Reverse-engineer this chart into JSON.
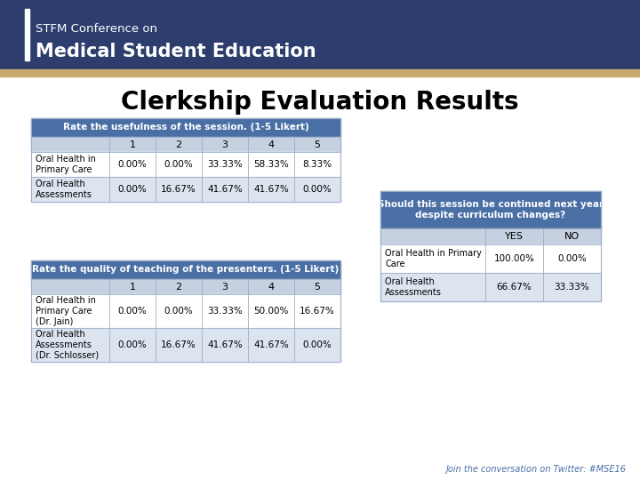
{
  "title": "Clerkship Evaluation Results",
  "header_text_line1": "STFM Conference on",
  "header_text_line2": "Medical Student Education",
  "header_bg": "#2d3e6e",
  "header_accent": "#c8a96e",
  "bg_color": "#ffffff",
  "table_header_bg": "#4a6fa5",
  "table_header_color": "#ffffff",
  "table_subheader_bg": "#c5d0e0",
  "table_row1_bg": "#ffffff",
  "table_row2_bg": "#dce4ef",
  "table_border": "#9aafc8",
  "table1_title": "Rate the usefulness of the session. (1-5 Likert)",
  "table1_cols": [
    "",
    "1",
    "2",
    "3",
    "4",
    "5"
  ],
  "table1_rows": [
    [
      "Oral Health in\nPrimary Care",
      "0.00%",
      "0.00%",
      "33.33%",
      "58.33%",
      "8.33%"
    ],
    [
      "Oral Health\nAssessments",
      "0.00%",
      "16.67%",
      "41.67%",
      "41.67%",
      "0.00%"
    ]
  ],
  "table2_title": "Rate the quality of teaching of the presenters. (1-5 Likert)",
  "table2_cols": [
    "",
    "1",
    "2",
    "3",
    "4",
    "5"
  ],
  "table2_rows": [
    [
      "Oral Health in\nPrimary Care\n(Dr. Jain)",
      "0.00%",
      "0.00%",
      "33.33%",
      "50.00%",
      "16.67%"
    ],
    [
      "Oral Health\nAssessments\n(Dr. Schlosser)",
      "0.00%",
      "16.67%",
      "41.67%",
      "41.67%",
      "0.00%"
    ]
  ],
  "table3_title": "Should this session be continued next year\ndespite curriculum changes?",
  "table3_cols": [
    "",
    "YES",
    "NO"
  ],
  "table3_rows": [
    [
      "Oral Health in Primary\nCare",
      "100.00%",
      "0.00%"
    ],
    [
      "Oral Health\nAssessments",
      "66.67%",
      "33.33%"
    ]
  ],
  "footer_text": "Join the conversation on Twitter: #MSE16",
  "footer_color": "#4a6fa5"
}
